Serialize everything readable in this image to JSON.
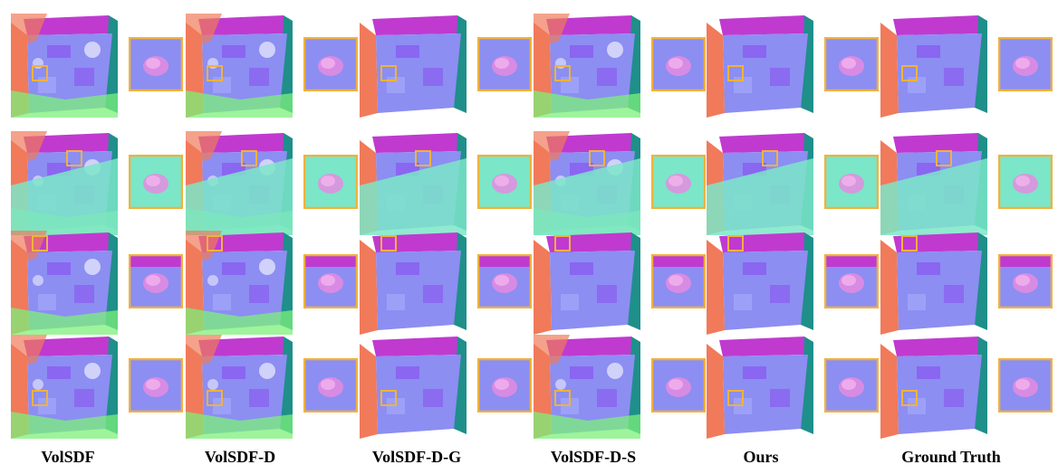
{
  "methods": [
    "VolSDF",
    "VolSDF-D",
    "VolSDF-D-G",
    "VolSDF-D-S",
    "Ours",
    "Ground Truth"
  ],
  "scenes": 4,
  "colors": {
    "wall_magenta": "#c03ad0",
    "wall_purple": "#8a5cf0",
    "floor_lavender": "#8c8ef2",
    "wall_teal": "#1f8f8a",
    "wall_orange": "#f07a5a",
    "floor_mint": "#7be6c8",
    "green_noise": "#7cf07a",
    "zoom_frame": "#f0b23c"
  }
}
